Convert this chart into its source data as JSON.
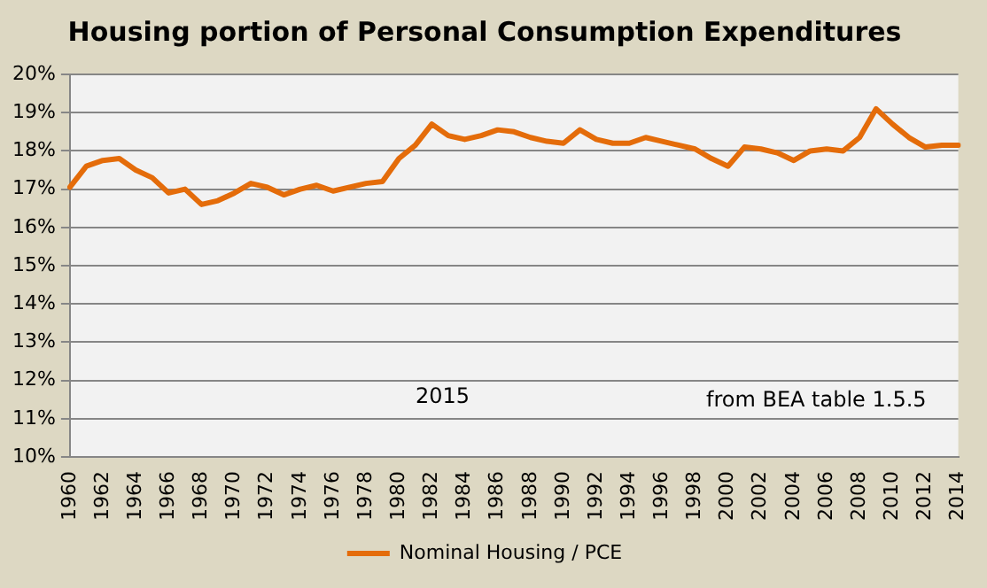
{
  "chart_data": {
    "type": "line",
    "title": "Housing portion of Personal Consumption Expenditures",
    "categories": [
      "1960",
      null,
      "1962",
      null,
      "1964",
      null,
      "1966",
      null,
      "1968",
      null,
      "1970",
      null,
      "1972",
      null,
      "1974",
      null,
      "1976",
      null,
      "1978",
      null,
      "1980",
      null,
      "1982",
      null,
      "1984",
      null,
      "1986",
      null,
      "1988",
      null,
      "1990",
      null,
      "1992",
      null,
      "1994",
      null,
      "1996",
      null,
      "1998",
      null,
      "2000",
      null,
      "2002",
      null,
      "2004",
      null,
      "2006",
      null,
      "2008",
      null,
      "2010",
      null,
      "2012",
      null,
      "2014"
    ],
    "series": [
      {
        "name": "Nominal Housing / PCE",
        "color": "#e46c0a",
        "values": [
          17.05,
          17.6,
          17.75,
          17.8,
          17.5,
          17.3,
          16.9,
          17.0,
          16.6,
          16.7,
          16.9,
          17.15,
          17.05,
          16.85,
          17.0,
          17.1,
          16.95,
          17.05,
          17.15,
          17.2,
          17.8,
          18.15,
          18.7,
          18.4,
          18.3,
          18.4,
          18.55,
          18.5,
          18.35,
          18.25,
          18.2,
          18.55,
          18.3,
          18.2,
          18.2,
          18.35,
          18.25,
          18.15,
          18.05,
          17.8,
          17.6,
          18.1,
          18.05,
          17.95,
          17.75,
          18.0,
          18.05,
          18.0,
          18.35,
          19.1,
          18.7,
          18.35,
          18.1,
          18.15,
          18.15
        ]
      }
    ],
    "ylim": [
      10,
      20
    ],
    "yticks": [
      {
        "value": 10,
        "label": "10%"
      },
      {
        "value": 11,
        "label": "11%"
      },
      {
        "value": 12,
        "label": "12%"
      },
      {
        "value": 13,
        "label": "13%"
      },
      {
        "value": 14,
        "label": "14%"
      },
      {
        "value": 15,
        "label": "15%"
      },
      {
        "value": 16,
        "label": "16%"
      },
      {
        "value": 17,
        "label": "17%"
      },
      {
        "value": 18,
        "label": "18%"
      },
      {
        "value": 19,
        "label": "19%"
      },
      {
        "value": 20,
        "label": "20%"
      }
    ],
    "annotations": [
      "2015",
      "from BEA table 1.5.5"
    ],
    "grid": "y",
    "legend": "bottom",
    "marker": "none",
    "line_style": "solid"
  }
}
